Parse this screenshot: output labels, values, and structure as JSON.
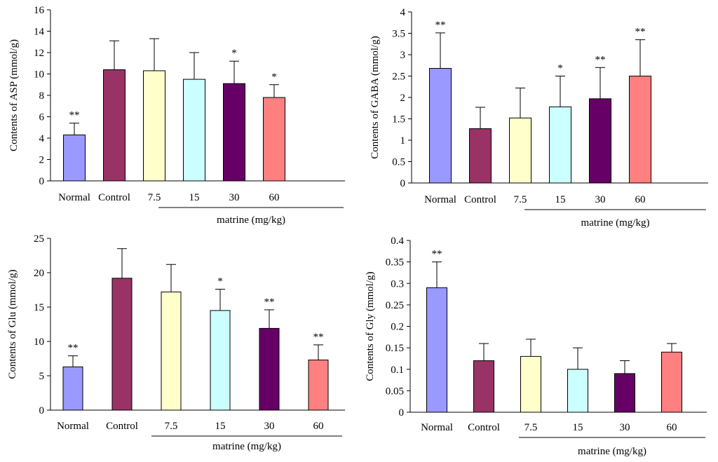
{
  "colors": {
    "bars": [
      "#9999ff",
      "#993366",
      "#ffffcc",
      "#ccffff",
      "#660066",
      "#ff8080"
    ],
    "axis": "#000000"
  },
  "chart_data": [
    {
      "type": "bar",
      "title": "",
      "xlabel": "",
      "ylabel": "Contents of ASP (mmol/g)",
      "ylim": [
        0,
        16
      ],
      "ticks": [
        0,
        2,
        4,
        6,
        8,
        10,
        12,
        14,
        16
      ],
      "categories": [
        "Normal",
        "Control",
        "7.5",
        "15",
        "30",
        "60"
      ],
      "group_label": "matrine (mg/kg)",
      "values": [
        4.3,
        10.4,
        10.3,
        9.5,
        9.1,
        7.8
      ],
      "errors": [
        1.1,
        2.7,
        3.0,
        2.5,
        2.1,
        1.2
      ],
      "significance": [
        "**",
        "",
        "",
        "",
        "*",
        "*"
      ]
    },
    {
      "type": "bar",
      "title": "",
      "xlabel": "",
      "ylabel": "Contents of GABA (mmol/g)",
      "ylim": [
        0,
        4
      ],
      "ticks": [
        0,
        0.5,
        1,
        1.5,
        2,
        2.5,
        3,
        3.5,
        4
      ],
      "categories": [
        "Normal",
        "Control",
        "7.5",
        "15",
        "30",
        "60"
      ],
      "group_label": "matrine (mg/kg)",
      "values": [
        2.68,
        1.27,
        1.52,
        1.78,
        1.97,
        2.5
      ],
      "errors": [
        0.83,
        0.5,
        0.7,
        0.72,
        0.73,
        0.85
      ],
      "significance": [
        "**",
        "",
        "",
        "*",
        "**",
        "**"
      ]
    },
    {
      "type": "bar",
      "title": "",
      "xlabel": "",
      "ylabel": "Contents of Glu (mmol/g)",
      "ylim": [
        0,
        25
      ],
      "ticks": [
        0,
        5,
        10,
        15,
        20,
        25
      ],
      "categories": [
        "Normal",
        "Control",
        "7.5",
        "15",
        "30",
        "60"
      ],
      "group_label": "matrine (mg/kg)",
      "values": [
        6.3,
        19.2,
        17.2,
        14.5,
        11.9,
        7.3
      ],
      "errors": [
        1.6,
        4.3,
        4.0,
        3.1,
        2.7,
        2.2
      ],
      "significance": [
        "**",
        "",
        "",
        "*",
        "**",
        "**"
      ]
    },
    {
      "type": "bar",
      "title": "",
      "xlabel": "",
      "ylabel": "Contents of Gly (mmol/g)",
      "ylim": [
        0,
        0.4
      ],
      "ticks": [
        0,
        0.05,
        0.1,
        0.15,
        0.2,
        0.25,
        0.3,
        0.35,
        0.4
      ],
      "categories": [
        "Normal",
        "Control",
        "7.5",
        "15",
        "30",
        "60"
      ],
      "group_label": "matrine (mg/kg)",
      "values": [
        0.29,
        0.12,
        0.13,
        0.1,
        0.09,
        0.14
      ],
      "errors": [
        0.06,
        0.04,
        0.04,
        0.05,
        0.03,
        0.02
      ],
      "significance": [
        "**",
        "",
        "",
        "",
        "",
        ""
      ]
    }
  ]
}
